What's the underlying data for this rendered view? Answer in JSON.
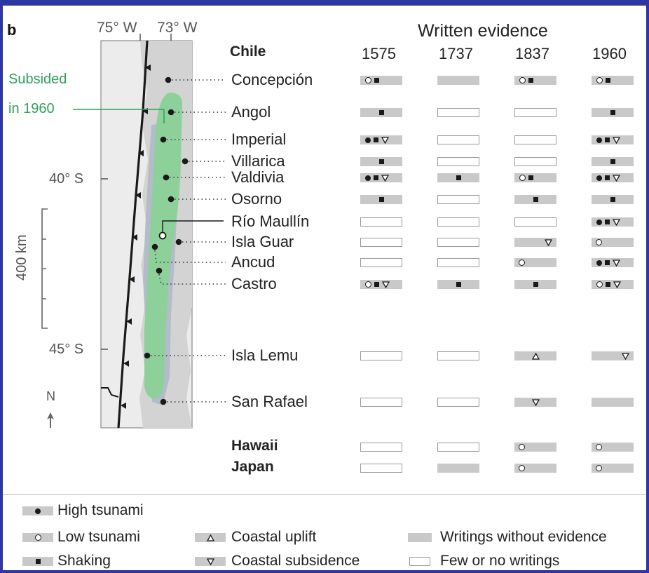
{
  "panel_label": "b",
  "map": {
    "longitudes": [
      "75° W",
      "73° W"
    ],
    "latitudes": [
      "40° S",
      "45° S"
    ],
    "scale_label": "400 km",
    "north_label": "N",
    "subsided_label_line1": "Subsided",
    "subsided_label_line2": "in 1960",
    "colors": {
      "land": "#d3d3d3",
      "sea": "#ececec",
      "subsided": "#8ed09a",
      "depression": "#b4bbc9"
    }
  },
  "table": {
    "heading": "Written evidence",
    "years": [
      "1575",
      "1737",
      "1837",
      "1960"
    ],
    "region_chile": "Chile",
    "sites": [
      {
        "name": "Concepción",
        "cells": [
          {
            "t": "w",
            "s": [
              "low",
              "shaking"
            ]
          },
          {
            "t": "w",
            "s": []
          },
          {
            "t": "w",
            "s": [
              "low",
              "shaking"
            ]
          },
          {
            "t": "w",
            "s": [
              "low",
              "shaking"
            ]
          }
        ]
      },
      {
        "name": "Angol",
        "cells": [
          {
            "t": "w",
            "s": [
              "shaking"
            ]
          },
          {
            "t": "f",
            "s": []
          },
          {
            "t": "f",
            "s": []
          },
          {
            "t": "w",
            "s": [
              "shaking"
            ]
          }
        ]
      },
      {
        "name": "Imperial",
        "cells": [
          {
            "t": "w",
            "s": [
              "high",
              "shaking",
              "subsidence"
            ]
          },
          {
            "t": "f",
            "s": []
          },
          {
            "t": "f",
            "s": []
          },
          {
            "t": "w",
            "s": [
              "high",
              "shaking",
              "subsidence"
            ]
          }
        ]
      },
      {
        "name": "Villarica",
        "cells": [
          {
            "t": "w",
            "s": [
              "shaking"
            ]
          },
          {
            "t": "f",
            "s": []
          },
          {
            "t": "f",
            "s": []
          },
          {
            "t": "w",
            "s": [
              "shaking"
            ]
          }
        ]
      },
      {
        "name": "Valdivia",
        "cells": [
          {
            "t": "w",
            "s": [
              "high",
              "shaking",
              "subsidence"
            ]
          },
          {
            "t": "w",
            "s": [
              "shaking"
            ]
          },
          {
            "t": "w",
            "s": [
              "low",
              "shaking"
            ]
          },
          {
            "t": "w",
            "s": [
              "high",
              "shaking",
              "subsidence"
            ]
          }
        ]
      },
      {
        "name": "Osorno",
        "cells": [
          {
            "t": "w",
            "s": [
              "shaking"
            ]
          },
          {
            "t": "f",
            "s": []
          },
          {
            "t": "w",
            "s": [
              "shaking"
            ]
          },
          {
            "t": "w",
            "s": [
              "shaking"
            ]
          }
        ]
      },
      {
        "name": "Río Maullín",
        "river": true,
        "cells": [
          {
            "t": "f",
            "s": []
          },
          {
            "t": "f",
            "s": []
          },
          {
            "t": "f",
            "s": []
          },
          {
            "t": "w",
            "s": [
              "high",
              "shaking",
              "subsidence"
            ]
          }
        ]
      },
      {
        "name": "Isla Guar",
        "cells": [
          {
            "t": "f",
            "s": []
          },
          {
            "t": "f",
            "s": []
          },
          {
            "t": "w",
            "s": [
              "subsidence_right"
            ]
          },
          {
            "t": "w",
            "s": [
              "low_left"
            ]
          }
        ]
      },
      {
        "name": "Ancud",
        "cells": [
          {
            "t": "f",
            "s": []
          },
          {
            "t": "f",
            "s": []
          },
          {
            "t": "w",
            "s": [
              "low_left"
            ]
          },
          {
            "t": "w",
            "s": [
              "high",
              "shaking",
              "subsidence"
            ]
          }
        ]
      },
      {
        "name": "Castro",
        "cells": [
          {
            "t": "w",
            "s": [
              "low",
              "shaking",
              "subsidence"
            ]
          },
          {
            "t": "w",
            "s": [
              "shaking"
            ]
          },
          {
            "t": "w",
            "s": [
              "shaking"
            ]
          },
          {
            "t": "w",
            "s": [
              "low",
              "shaking",
              "subsidence"
            ]
          }
        ]
      },
      {
        "name": "Isla Lemu",
        "cells": [
          {
            "t": "f",
            "s": []
          },
          {
            "t": "f",
            "s": []
          },
          {
            "t": "w",
            "s": [
              "uplift"
            ]
          },
          {
            "t": "w",
            "s": [
              "subsidence_right"
            ]
          }
        ]
      },
      {
        "name": "San Rafael",
        "cells": [
          {
            "t": "f",
            "s": []
          },
          {
            "t": "f",
            "s": []
          },
          {
            "t": "w",
            "s": [
              "subsidence"
            ]
          },
          {
            "t": "w",
            "s": []
          }
        ]
      }
    ],
    "regions": [
      {
        "name": "Hawaii",
        "cells": [
          {
            "t": "f",
            "s": []
          },
          {
            "t": "f",
            "s": []
          },
          {
            "t": "w",
            "s": [
              "low_left"
            ]
          },
          {
            "t": "w",
            "s": [
              "low_left"
            ]
          }
        ]
      },
      {
        "name": "Japan",
        "cells": [
          {
            "t": "f",
            "s": []
          },
          {
            "t": "w",
            "s": []
          },
          {
            "t": "w",
            "s": [
              "low_left"
            ]
          },
          {
            "t": "w",
            "s": [
              "low_left"
            ]
          }
        ]
      }
    ]
  },
  "legend": {
    "high_tsunami": "High tsunami",
    "low_tsunami": "Low tsunami",
    "shaking": "Shaking",
    "coastal_uplift": "Coastal uplift",
    "coastal_subsidence": "Coastal subsidence",
    "writings_without_evidence": "Writings without evidence",
    "few_or_no_writings": "Few or no writings"
  }
}
